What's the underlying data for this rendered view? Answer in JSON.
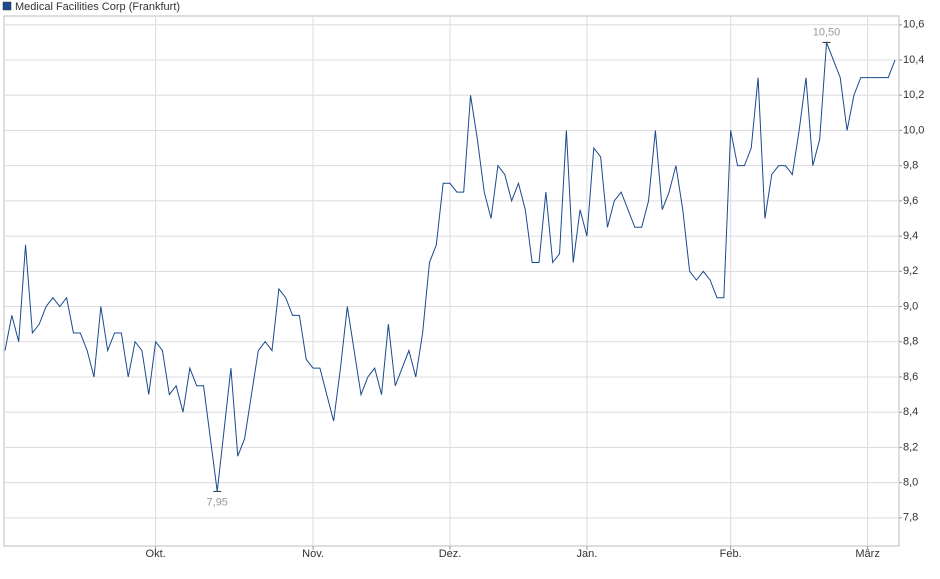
{
  "chart_data": {
    "type": "line",
    "title": "Medical Facilities Corp (Frankfurt)",
    "categories": [
      null,
      null,
      null,
      null,
      null,
      null,
      null,
      null,
      null,
      null,
      null,
      null,
      null,
      null,
      null,
      null,
      null,
      null,
      null,
      null,
      null,
      null,
      "Okt.",
      null,
      null,
      null,
      null,
      null,
      null,
      null,
      null,
      null,
      null,
      null,
      null,
      null,
      null,
      null,
      null,
      null,
      null,
      null,
      null,
      null,
      null,
      "Nov.",
      null,
      null,
      null,
      null,
      null,
      null,
      null,
      null,
      null,
      null,
      null,
      null,
      null,
      null,
      null,
      null,
      null,
      null,
      null,
      "Dez.",
      null,
      null,
      null,
      null,
      null,
      null,
      null,
      null,
      null,
      null,
      null,
      null,
      null,
      null,
      null,
      null,
      null,
      null,
      null,
      "Jan.",
      null,
      null,
      null,
      null,
      null,
      null,
      null,
      null,
      null,
      null,
      null,
      null,
      null,
      null,
      null,
      null,
      null,
      null,
      null,
      null,
      "Feb.",
      null,
      null,
      null,
      null,
      null,
      null,
      null,
      null,
      null,
      null,
      null,
      null,
      null,
      null,
      null,
      null,
      null,
      null,
      null,
      "März",
      null,
      null,
      null,
      null
    ],
    "series": [
      {
        "name": "Medical Facilities Corp (Frankfurt)",
        "color": "#1a4a8f",
        "values": [
          8.75,
          8.95,
          8.8,
          9.35,
          8.85,
          8.9,
          9.0,
          9.05,
          9.0,
          9.05,
          8.85,
          8.85,
          8.75,
          8.6,
          9.0,
          8.75,
          8.85,
          8.85,
          8.6,
          8.8,
          8.75,
          8.5,
          8.8,
          8.75,
          8.5,
          8.55,
          8.4,
          8.65,
          8.55,
          8.55,
          8.25,
          7.95,
          8.3,
          8.65,
          8.15,
          8.25,
          8.5,
          8.75,
          8.8,
          8.75,
          9.1,
          9.05,
          8.95,
          8.95,
          8.7,
          8.65,
          8.65,
          8.5,
          8.35,
          8.65,
          9.0,
          8.75,
          8.5,
          8.6,
          8.65,
          8.5,
          8.9,
          8.55,
          8.65,
          8.75,
          8.6,
          8.85,
          9.25,
          9.35,
          9.7,
          9.7,
          9.65,
          9.65,
          10.2,
          9.95,
          9.65,
          9.5,
          9.8,
          9.75,
          9.6,
          9.7,
          9.55,
          9.25,
          9.25,
          9.65,
          9.25,
          9.3,
          10.0,
          9.25,
          9.55,
          9.4,
          9.9,
          9.85,
          9.45,
          9.6,
          9.65,
          9.55,
          9.45,
          9.45,
          9.6,
          10.0,
          9.55,
          9.65,
          9.8,
          9.55,
          9.2,
          9.15,
          9.2,
          9.15,
          9.05,
          9.05,
          10.0,
          9.8,
          9.8,
          9.9,
          10.3,
          9.5,
          9.75,
          9.8,
          9.8,
          9.75,
          10.0,
          10.3,
          9.8,
          9.95,
          10.5,
          10.4,
          10.3,
          10.0,
          10.2,
          10.3,
          10.3,
          10.3,
          10.3,
          10.3,
          10.4
        ],
        "value_labels": [
          null,
          null,
          null,
          null,
          null,
          null,
          null,
          null,
          null,
          null,
          null,
          null,
          null,
          null,
          null,
          null,
          null,
          null,
          null,
          null,
          null,
          null,
          null,
          null,
          null,
          null,
          null,
          null,
          null,
          null,
          null,
          "7,95",
          null,
          null,
          null,
          null,
          null,
          null,
          null,
          null,
          null,
          null,
          null,
          null,
          null,
          null,
          null,
          null,
          null,
          null,
          null,
          null,
          null,
          null,
          null,
          null,
          null,
          null,
          null,
          null,
          null,
          null,
          null,
          null,
          null,
          null,
          null,
          null,
          null,
          null,
          null,
          null,
          null,
          null,
          null,
          null,
          null,
          null,
          null,
          null,
          null,
          null,
          null,
          null,
          null,
          null,
          null,
          null,
          null,
          null,
          null,
          null,
          null,
          null,
          null,
          null,
          null,
          null,
          null,
          null,
          null,
          null,
          null,
          null,
          null,
          null,
          null,
          null,
          null,
          null,
          null,
          null,
          null,
          null,
          null,
          null,
          null,
          null,
          null,
          null,
          "10,50",
          null,
          null,
          null,
          null,
          null,
          null,
          null,
          null,
          null,
          null
        ]
      }
    ],
    "ylim": [
      7.64,
      10.65
    ],
    "yticks": [
      {
        "value": 7.8,
        "label": "7,8"
      },
      {
        "value": 8.0,
        "label": "8,0"
      },
      {
        "value": 8.2,
        "label": "8,2"
      },
      {
        "value": 8.4,
        "label": "8,4"
      },
      {
        "value": 8.6,
        "label": "8,6"
      },
      {
        "value": 8.8,
        "label": "8,8"
      },
      {
        "value": 9.0,
        "label": "9,0"
      },
      {
        "value": 9.2,
        "label": "9,2"
      },
      {
        "value": 9.4,
        "label": "9,4"
      },
      {
        "value": 9.6,
        "label": "9,6"
      },
      {
        "value": 9.8,
        "label": "9,8"
      },
      {
        "value": 10.0,
        "label": "10,0"
      },
      {
        "value": 10.2,
        "label": "10,2"
      },
      {
        "value": 10.4,
        "label": "10,4"
      },
      {
        "value": 10.6,
        "label": "10,6"
      }
    ],
    "grid": true
  }
}
